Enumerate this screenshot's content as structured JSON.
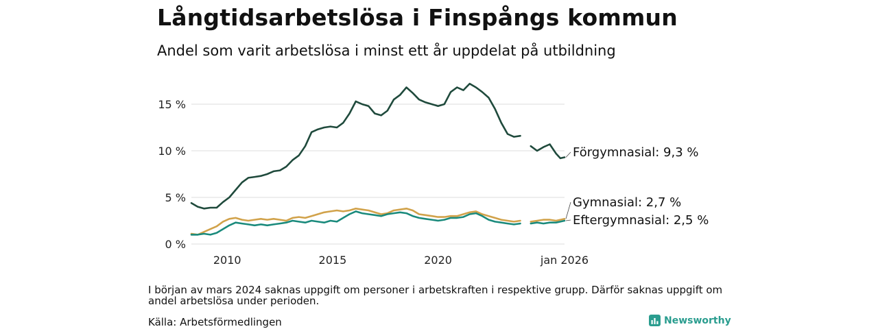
{
  "header": {
    "title": "Långtidsarbetslösa i Finspångs kommun",
    "subtitle": "Andel som varit arbetslösa i minst ett år uppdelat på utbildning"
  },
  "footer": {
    "note": "I början av mars 2024 saknas uppgift om personer i arbetskraften i respektive grupp. Därför saknas uppgift om andel arbetslösa under perioden.",
    "source": "Källa: Arbetsförmedlingen",
    "brand": "Newsworthy",
    "brand_icon": "bar-chart-logo-icon"
  },
  "chart_data": {
    "type": "line",
    "x_range": [
      2008.3,
      2026.0
    ],
    "ylim": [
      0,
      17.5
    ],
    "y_ticks": [
      {
        "value": 0,
        "label": "0 %"
      },
      {
        "value": 5,
        "label": "5 %"
      },
      {
        "value": 10,
        "label": "10 %"
      },
      {
        "value": 15,
        "label": "15 %"
      }
    ],
    "x_ticks": [
      {
        "value": 2010,
        "label": "2010"
      },
      {
        "value": 2015,
        "label": "2015"
      },
      {
        "value": 2020,
        "label": "2020"
      },
      {
        "value": 2026.0,
        "label": "jan 2026"
      }
    ],
    "gap": [
      2024.0,
      2024.4
    ],
    "series": [
      {
        "name": "Förgymnasial",
        "label": "Förgymnasial: 9,3 %",
        "color": "#1f4a3c",
        "points": [
          [
            2008.3,
            4.4
          ],
          [
            2008.6,
            4.0
          ],
          [
            2008.9,
            3.8
          ],
          [
            2009.2,
            3.9
          ],
          [
            2009.5,
            3.9
          ],
          [
            2009.8,
            4.5
          ],
          [
            2010.1,
            5.0
          ],
          [
            2010.4,
            5.8
          ],
          [
            2010.7,
            6.6
          ],
          [
            2011.0,
            7.1
          ],
          [
            2011.3,
            7.2
          ],
          [
            2011.6,
            7.3
          ],
          [
            2011.9,
            7.5
          ],
          [
            2012.2,
            7.8
          ],
          [
            2012.5,
            7.9
          ],
          [
            2012.8,
            8.3
          ],
          [
            2013.1,
            9.0
          ],
          [
            2013.4,
            9.5
          ],
          [
            2013.7,
            10.5
          ],
          [
            2014.0,
            12.0
          ],
          [
            2014.3,
            12.3
          ],
          [
            2014.6,
            12.5
          ],
          [
            2014.9,
            12.6
          ],
          [
            2015.2,
            12.5
          ],
          [
            2015.5,
            13.0
          ],
          [
            2015.8,
            14.0
          ],
          [
            2016.1,
            15.3
          ],
          [
            2016.4,
            15.0
          ],
          [
            2016.7,
            14.8
          ],
          [
            2017.0,
            14.0
          ],
          [
            2017.3,
            13.8
          ],
          [
            2017.6,
            14.3
          ],
          [
            2017.9,
            15.5
          ],
          [
            2018.2,
            16.0
          ],
          [
            2018.5,
            16.8
          ],
          [
            2018.8,
            16.2
          ],
          [
            2019.1,
            15.5
          ],
          [
            2019.4,
            15.2
          ],
          [
            2019.7,
            15.0
          ],
          [
            2020.0,
            14.8
          ],
          [
            2020.3,
            15.0
          ],
          [
            2020.6,
            16.3
          ],
          [
            2020.9,
            16.8
          ],
          [
            2021.2,
            16.5
          ],
          [
            2021.5,
            17.2
          ],
          [
            2021.8,
            16.8
          ],
          [
            2022.1,
            16.3
          ],
          [
            2022.4,
            15.7
          ],
          [
            2022.7,
            14.5
          ],
          [
            2023.0,
            13.0
          ],
          [
            2023.3,
            11.8
          ],
          [
            2023.6,
            11.5
          ],
          [
            2023.9,
            11.6
          ],
          [
            2024.4,
            10.5
          ],
          [
            2024.7,
            10.0
          ],
          [
            2025.0,
            10.4
          ],
          [
            2025.3,
            10.7
          ],
          [
            2025.6,
            9.7
          ],
          [
            2025.8,
            9.2
          ],
          [
            2026.0,
            9.3
          ]
        ]
      },
      {
        "name": "Gymnasial",
        "label": "Gymnasial: 2,7 %",
        "color": "#d1a24a",
        "points": [
          [
            2008.3,
            1.1
          ],
          [
            2008.6,
            1.0
          ],
          [
            2008.9,
            1.3
          ],
          [
            2009.2,
            1.6
          ],
          [
            2009.5,
            1.9
          ],
          [
            2009.8,
            2.4
          ],
          [
            2010.1,
            2.7
          ],
          [
            2010.4,
            2.8
          ],
          [
            2010.7,
            2.6
          ],
          [
            2011.0,
            2.5
          ],
          [
            2011.3,
            2.6
          ],
          [
            2011.6,
            2.7
          ],
          [
            2011.9,
            2.6
          ],
          [
            2012.2,
            2.7
          ],
          [
            2012.5,
            2.6
          ],
          [
            2012.8,
            2.5
          ],
          [
            2013.1,
            2.8
          ],
          [
            2013.4,
            2.9
          ],
          [
            2013.7,
            2.8
          ],
          [
            2014.0,
            3.0
          ],
          [
            2014.3,
            3.2
          ],
          [
            2014.6,
            3.4
          ],
          [
            2014.9,
            3.5
          ],
          [
            2015.2,
            3.6
          ],
          [
            2015.5,
            3.5
          ],
          [
            2015.8,
            3.6
          ],
          [
            2016.1,
            3.8
          ],
          [
            2016.4,
            3.7
          ],
          [
            2016.7,
            3.6
          ],
          [
            2017.0,
            3.4
          ],
          [
            2017.3,
            3.2
          ],
          [
            2017.6,
            3.3
          ],
          [
            2017.9,
            3.6
          ],
          [
            2018.2,
            3.7
          ],
          [
            2018.5,
            3.8
          ],
          [
            2018.8,
            3.6
          ],
          [
            2019.1,
            3.2
          ],
          [
            2019.4,
            3.1
          ],
          [
            2019.7,
            3.0
          ],
          [
            2020.0,
            2.9
          ],
          [
            2020.3,
            2.9
          ],
          [
            2020.6,
            3.0
          ],
          [
            2020.9,
            3.0
          ],
          [
            2021.2,
            3.2
          ],
          [
            2021.5,
            3.4
          ],
          [
            2021.8,
            3.5
          ],
          [
            2022.1,
            3.2
          ],
          [
            2022.4,
            3.0
          ],
          [
            2022.7,
            2.8
          ],
          [
            2023.0,
            2.6
          ],
          [
            2023.3,
            2.5
          ],
          [
            2023.6,
            2.4
          ],
          [
            2023.9,
            2.5
          ],
          [
            2024.4,
            2.4
          ],
          [
            2024.7,
            2.5
          ],
          [
            2025.0,
            2.6
          ],
          [
            2025.3,
            2.6
          ],
          [
            2025.6,
            2.5
          ],
          [
            2025.8,
            2.6
          ],
          [
            2026.0,
            2.7
          ]
        ]
      },
      {
        "name": "Eftergymnasial",
        "label": "Eftergymnasial: 2,5 %",
        "color": "#1a8a7c",
        "points": [
          [
            2008.3,
            1.0
          ],
          [
            2008.6,
            1.0
          ],
          [
            2008.9,
            1.1
          ],
          [
            2009.2,
            1.0
          ],
          [
            2009.5,
            1.2
          ],
          [
            2009.8,
            1.6
          ],
          [
            2010.1,
            2.0
          ],
          [
            2010.4,
            2.3
          ],
          [
            2010.7,
            2.2
          ],
          [
            2011.0,
            2.1
          ],
          [
            2011.3,
            2.0
          ],
          [
            2011.6,
            2.1
          ],
          [
            2011.9,
            2.0
          ],
          [
            2012.2,
            2.1
          ],
          [
            2012.5,
            2.2
          ],
          [
            2012.8,
            2.3
          ],
          [
            2013.1,
            2.5
          ],
          [
            2013.4,
            2.4
          ],
          [
            2013.7,
            2.3
          ],
          [
            2014.0,
            2.5
          ],
          [
            2014.3,
            2.4
          ],
          [
            2014.6,
            2.3
          ],
          [
            2014.9,
            2.5
          ],
          [
            2015.2,
            2.4
          ],
          [
            2015.5,
            2.8
          ],
          [
            2015.8,
            3.2
          ],
          [
            2016.1,
            3.5
          ],
          [
            2016.4,
            3.3
          ],
          [
            2016.7,
            3.2
          ],
          [
            2017.0,
            3.1
          ],
          [
            2017.3,
            3.0
          ],
          [
            2017.6,
            3.2
          ],
          [
            2017.9,
            3.3
          ],
          [
            2018.2,
            3.4
          ],
          [
            2018.5,
            3.3
          ],
          [
            2018.8,
            3.0
          ],
          [
            2019.1,
            2.8
          ],
          [
            2019.4,
            2.7
          ],
          [
            2019.7,
            2.6
          ],
          [
            2020.0,
            2.5
          ],
          [
            2020.3,
            2.6
          ],
          [
            2020.6,
            2.8
          ],
          [
            2020.9,
            2.8
          ],
          [
            2021.2,
            2.9
          ],
          [
            2021.5,
            3.2
          ],
          [
            2021.8,
            3.3
          ],
          [
            2022.1,
            3.0
          ],
          [
            2022.4,
            2.6
          ],
          [
            2022.7,
            2.4
          ],
          [
            2023.0,
            2.3
          ],
          [
            2023.3,
            2.2
          ],
          [
            2023.6,
            2.1
          ],
          [
            2023.9,
            2.2
          ],
          [
            2024.4,
            2.2
          ],
          [
            2024.7,
            2.3
          ],
          [
            2025.0,
            2.2
          ],
          [
            2025.3,
            2.3
          ],
          [
            2025.6,
            2.3
          ],
          [
            2025.8,
            2.4
          ],
          [
            2026.0,
            2.5
          ]
        ]
      }
    ]
  }
}
